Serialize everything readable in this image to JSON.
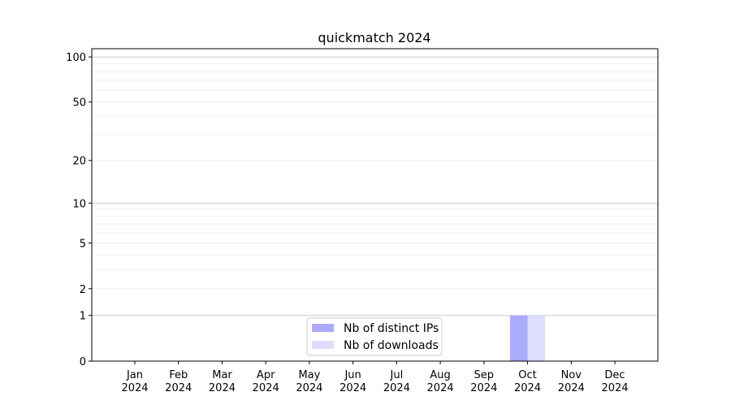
{
  "chart_data": {
    "type": "bar",
    "title": "quickmatch 2024",
    "xlabel": "",
    "ylabel": "",
    "yscale": "log(1+y)",
    "ylim": [
      0,
      113
    ],
    "yticks": [
      0,
      1,
      2,
      5,
      10,
      20,
      50,
      100
    ],
    "grid": true,
    "legend_position": "lower-center",
    "categories": [
      "Jan\n2024",
      "Feb\n2024",
      "Mar\n2024",
      "Apr\n2024",
      "May\n2024",
      "Jun\n2024",
      "Jul\n2024",
      "Aug\n2024",
      "Sep\n2024",
      "Oct\n2024",
      "Nov\n2024",
      "Dec\n2024"
    ],
    "series": [
      {
        "name": "Nb of distinct IPs",
        "color": "#aaaaff",
        "values": [
          0,
          0,
          0,
          0,
          0,
          0,
          0,
          0,
          0,
          1,
          0,
          0
        ]
      },
      {
        "name": "Nb of downloads",
        "color": "#ddddff",
        "values": [
          0,
          0,
          0,
          0,
          0,
          0,
          0,
          0,
          0,
          1,
          0,
          0
        ]
      }
    ]
  }
}
